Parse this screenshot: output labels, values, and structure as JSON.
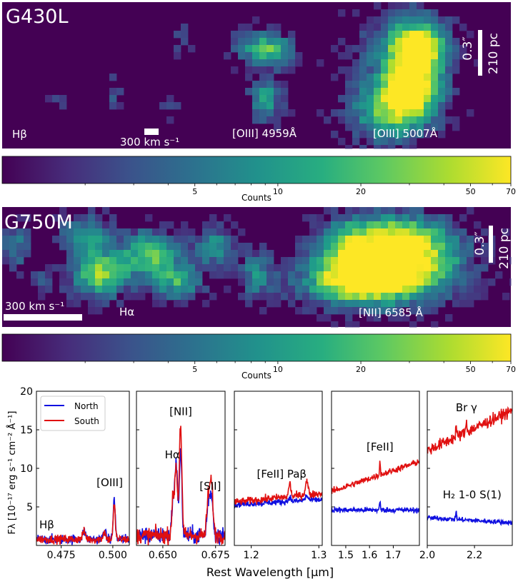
{
  "chart_data": [
    {
      "type": "heatmap",
      "title": "G430L",
      "scale_bar_angle": "0.3″",
      "scale_bar_distance": "210 pc",
      "velocity_bar": "300 km s⁻¹",
      "line_labels": [
        "Hβ",
        "[OIII] 4959Å",
        "[OIII] 5007Å"
      ]
    },
    {
      "type": "colorbar",
      "scale": "log",
      "range": [
        1,
        70
      ],
      "ticks": [
        5,
        10,
        20,
        50,
        70
      ],
      "tick_labels": [
        "5",
        "10",
        "20",
        "50",
        "70"
      ],
      "label": "Counts"
    },
    {
      "type": "heatmap",
      "title": "G750M",
      "scale_bar_angle": "0.3″",
      "scale_bar_distance": "210 pc",
      "velocity_bar": "300 km s⁻¹",
      "line_labels": [
        "Hα",
        "[NII] 6585 Å"
      ]
    },
    {
      "type": "colorbar",
      "scale": "log",
      "range": [
        1,
        70
      ],
      "ticks": [
        5,
        10,
        20,
        50,
        70
      ],
      "tick_labels": [
        "5",
        "10",
        "20",
        "50",
        "70"
      ],
      "label": "Counts"
    },
    {
      "type": "line",
      "ylabel": "Fλ [10⁻¹⁷ erg s⁻¹ cm⁻² Å⁻¹]",
      "xlabel": "Rest Wavelength [μm]",
      "ylim": [
        0,
        20
      ],
      "yticks": [
        5,
        10,
        15,
        20
      ],
      "legend": {
        "placement": "top-left",
        "entries": [
          "North",
          "South"
        ]
      },
      "series_colors": {
        "North": "#1010e0",
        "South": "#e01010"
      },
      "panels": [
        {
          "xlim": [
            0.463,
            0.508
          ],
          "xticks": [
            0.475,
            0.5
          ],
          "xtick_labels": [
            "0.475",
            "0.500"
          ],
          "annotations": [
            {
              "text": "Hβ",
              "x": 0.468,
              "y": 2.2
            },
            {
              "text": "[OIII]",
              "x": 0.4985,
              "y": 7.7
            }
          ],
          "series": [
            {
              "name": "North",
              "base": 0.8,
              "slope": 0,
              "noise": 0.45,
              "lines": [
                {
                  "c": 0.4861,
                  "a": 1.0,
                  "w": 0.0007
                },
                {
                  "c": 0.4959,
                  "a": 1.2,
                  "w": 0.0006
                },
                {
                  "c": 0.5007,
                  "a": 5.2,
                  "w": 0.0005
                }
              ]
            },
            {
              "name": "South",
              "base": 0.8,
              "slope": 0,
              "noise": 0.4,
              "lines": [
                {
                  "c": 0.4861,
                  "a": 1.0,
                  "w": 0.0007
                },
                {
                  "c": 0.4959,
                  "a": 1.0,
                  "w": 0.0006
                },
                {
                  "c": 0.5007,
                  "a": 4.5,
                  "w": 0.0005
                }
              ]
            }
          ]
        },
        {
          "xlim": [
            0.6375,
            0.6795
          ],
          "xticks": [
            0.65,
            0.675
          ],
          "xtick_labels": [
            "0.650",
            "0.675"
          ],
          "annotations": [
            {
              "text": "[NII]",
              "x": 0.6585,
              "y": 16.9
            },
            {
              "text": "Hα",
              "x": 0.6545,
              "y": 11.3
            },
            {
              "text": "[SII]",
              "x": 0.6725,
              "y": 7.2
            }
          ],
          "series": [
            {
              "name": "North",
              "base": 1.3,
              "slope": 0,
              "noise": 0.8,
              "lines": [
                {
                  "c": 0.6548,
                  "a": 4.5,
                  "w": 0.0006
                },
                {
                  "c": 0.6563,
                  "a": 9.7,
                  "w": 0.0006
                },
                {
                  "c": 0.6584,
                  "a": 10.8,
                  "w": 0.0006
                },
                {
                  "c": 0.6716,
                  "a": 4.2,
                  "w": 0.0007
                },
                {
                  "c": 0.6731,
                  "a": 5.0,
                  "w": 0.0007
                }
              ]
            },
            {
              "name": "South",
              "base": 1.3,
              "slope": 0,
              "noise": 0.75,
              "lines": [
                {
                  "c": 0.6548,
                  "a": 4.5,
                  "w": 0.0006
                },
                {
                  "c": 0.6563,
                  "a": 9.0,
                  "w": 0.0006
                },
                {
                  "c": 0.6584,
                  "a": 14.5,
                  "w": 0.0006
                },
                {
                  "c": 0.6716,
                  "a": 5.0,
                  "w": 0.0007
                },
                {
                  "c": 0.6731,
                  "a": 6.5,
                  "w": 0.0007
                }
              ]
            }
          ]
        },
        {
          "xlim": [
            1.175,
            1.305
          ],
          "xticks": [
            1.2,
            1.3
          ],
          "xtick_labels": [
            "1.2",
            "1.3"
          ],
          "annotations": [
            {
              "text": "[FeII] Paβ",
              "x": 1.245,
              "y": 8.8
            }
          ],
          "series": [
            {
              "name": "North",
              "base": 5.3,
              "slope": 5,
              "noise": 0.28,
              "lines": [
                {
                  "c": 1.257,
                  "a": 0.6,
                  "w": 0.0015
                },
                {
                  "c": 1.282,
                  "a": 0.6,
                  "w": 0.002
                }
              ]
            },
            {
              "name": "South",
              "base": 5.6,
              "slope": 9,
              "noise": 0.35,
              "lines": [
                {
                  "c": 1.257,
                  "a": 1.8,
                  "w": 0.0015
                },
                {
                  "c": 1.282,
                  "a": 1.8,
                  "w": 0.002
                }
              ]
            }
          ]
        },
        {
          "xlim": [
            1.44,
            1.81
          ],
          "xticks": [
            1.5,
            1.6,
            1.7
          ],
          "xtick_labels": [
            "1.5",
            "1.6",
            "1.7"
          ],
          "annotations": [
            {
              "text": "[FeII]",
              "x": 1.644,
              "y": 12.3
            }
          ],
          "series": [
            {
              "name": "North",
              "base": 4.6,
              "slope": 0,
              "noise": 0.25,
              "lines": [
                {
                  "c": 1.644,
                  "a": 1.0,
                  "w": 0.002
                }
              ]
            },
            {
              "name": "South",
              "base": 7.0,
              "slope": 10.5,
              "noise": 0.3,
              "lines": [
                {
                  "c": 1.644,
                  "a": 1.6,
                  "w": 0.002
                }
              ]
            }
          ]
        },
        {
          "xlim": [
            2.0,
            2.36
          ],
          "xticks": [
            2.0,
            2.2
          ],
          "xtick_labels": [
            "2.0",
            "2.2"
          ],
          "annotations": [
            {
              "text": "Br γ",
              "x": 2.166,
              "y": 17.4
            },
            {
              "text": "H₂ 1-0 S(1)",
              "x": 2.19,
              "y": 6.1
            }
          ],
          "series": [
            {
              "name": "North",
              "base": 3.6,
              "slope": -1.8,
              "noise": 0.22,
              "lines": [
                {
                  "c": 2.122,
                  "a": 1.0,
                  "w": 0.002
                }
              ]
            },
            {
              "name": "South",
              "base": 12.3,
              "slope": 14.5,
              "noise": 0.55,
              "lines": [
                {
                  "c": 2.122,
                  "a": 1.4,
                  "w": 0.002
                },
                {
                  "c": 2.166,
                  "a": 1.4,
                  "w": 0.0025
                }
              ]
            }
          ]
        }
      ]
    }
  ]
}
